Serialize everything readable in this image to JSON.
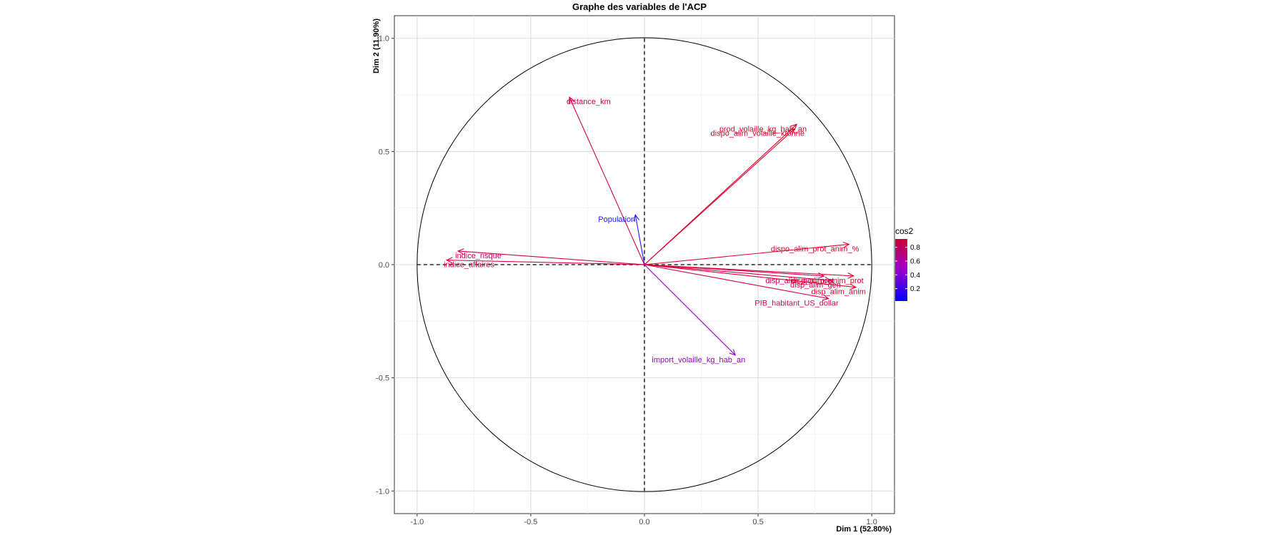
{
  "chart_data": {
    "type": "scatter",
    "subtype": "pca-variable-correlation-circle",
    "title": "Graphe des variables de l'ACP",
    "xlabel": "Dim 1 (52.80%)",
    "ylabel": "Dim 2 (11.90%)",
    "xlim": [
      -1.1,
      1.1
    ],
    "ylim": [
      -1.1,
      1.1
    ],
    "xticks": [
      -1.0,
      -0.5,
      0.0,
      0.5,
      1.0
    ],
    "yticks": [
      -1.0,
      -0.5,
      0.0,
      0.5,
      1.0
    ],
    "xtick_labels": [
      "-1.0",
      "-0.5",
      "0.0",
      "0.5",
      "1.0"
    ],
    "ytick_labels": [
      "-1.0",
      "-0.5",
      "0.0",
      "0.5",
      "1.0"
    ],
    "grid": true,
    "unit_circle": true,
    "legend": {
      "title": "cos2",
      "placement": "right",
      "range": [
        0.02,
        0.92
      ],
      "ticks": [
        0.2,
        0.4,
        0.6,
        0.8
      ],
      "tick_labels": [
        "0.2",
        "0.4",
        "0.6",
        "0.8"
      ],
      "colors": {
        "low": "#0000ff",
        "mid": "#9900cc",
        "high": "#cc0033"
      }
    },
    "variables": [
      {
        "name": "distance_km",
        "x": -0.33,
        "y": 0.74,
        "cos2": 0.65,
        "color": "#d4004f"
      },
      {
        "name": "prod_volaille_kg_hab_an",
        "x": 0.67,
        "y": 0.62,
        "cos2": 0.83,
        "color": "#e0002c"
      },
      {
        "name": "dispo_alim_volaille_ktonne",
        "x": 0.66,
        "y": 0.6,
        "cos2": 0.8,
        "color": "#e0002c"
      },
      {
        "name": "Population",
        "x": -0.04,
        "y": 0.22,
        "cos2": 0.05,
        "color": "#1a1aff"
      },
      {
        "name": "indice_risque",
        "x": -0.82,
        "y": 0.06,
        "cos2": 0.67,
        "color": "#d4004f"
      },
      {
        "name": "indice_affaires",
        "x": -0.87,
        "y": 0.02,
        "cos2": 0.76,
        "color": "#da0040"
      },
      {
        "name": "dispo_alim_prot_anim_%",
        "x": 0.9,
        "y": 0.09,
        "cos2": 0.82,
        "color": "#e0002c"
      },
      {
        "name": "disp_alim_gen_prot",
        "x": 0.79,
        "y": -0.05,
        "cos2": 0.63,
        "color": "#cc0060"
      },
      {
        "name": "disp_alim_anim_prot",
        "x": 0.92,
        "y": -0.05,
        "cos2": 0.85,
        "color": "#e0002c"
      },
      {
        "name": "disp_alim_gen",
        "x": 0.82,
        "y": -0.07,
        "cos2": 0.68,
        "color": "#d4004f"
      },
      {
        "name": "disp_alim_anim",
        "x": 0.93,
        "y": -0.1,
        "cos2": 0.87,
        "color": "#e0002c"
      },
      {
        "name": "PIB_habitant_US_dollar",
        "x": 0.81,
        "y": -0.15,
        "cos2": 0.68,
        "color": "#d4004f"
      },
      {
        "name": "import_volaille_kg_hab_an",
        "x": 0.4,
        "y": -0.4,
        "cos2": 0.32,
        "color": "#9b00cc"
      }
    ]
  }
}
